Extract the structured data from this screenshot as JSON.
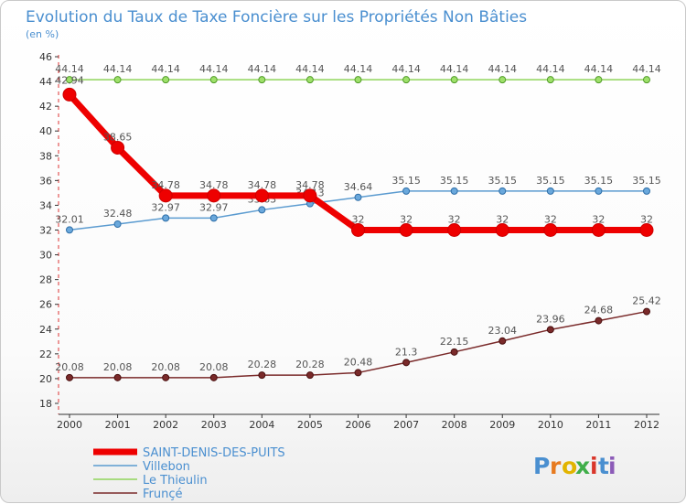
{
  "chart_data": {
    "type": "line",
    "title": "Evolution du Taux de Taxe Foncière sur les Propriétés Non Bâties",
    "subtitle": "(en %)",
    "xlabel": "",
    "ylabel": "",
    "ylim": [
      18,
      46
    ],
    "yticks": [
      18,
      20,
      22,
      24,
      26,
      28,
      30,
      32,
      34,
      36,
      38,
      40,
      42,
      44,
      46
    ],
    "x": [
      "2000",
      "2001",
      "2002",
      "2003",
      "2004",
      "2005",
      "2006",
      "2007",
      "2008",
      "2009",
      "2010",
      "2011",
      "2012"
    ],
    "grid": false,
    "legend_position": "bottom-left",
    "series": [
      {
        "name": "SAINT-DENIS-DES-PUITS",
        "color": "#ee0000",
        "values": [
          42.94,
          38.65,
          34.78,
          34.78,
          34.78,
          34.78,
          32,
          32,
          32,
          32,
          32,
          32,
          32
        ],
        "labels": [
          "42.94",
          "38.65",
          "34.78",
          "34.78",
          "34.78",
          "34.78",
          "32",
          "32",
          "32",
          "32",
          "32",
          "32",
          "32"
        ]
      },
      {
        "name": "Villebon",
        "color": "#5b9bd0",
        "values": [
          32.01,
          32.48,
          32.97,
          32.97,
          33.63,
          34.13,
          34.64,
          35.15,
          35.15,
          35.15,
          35.15,
          35.15,
          35.15
        ],
        "labels": [
          "32.01",
          "32.48",
          "32.97",
          "32.97",
          "33.63",
          "34.13",
          "34.64",
          "35.15",
          "35.15",
          "35.15",
          "35.15",
          "35.15",
          "35.15"
        ]
      },
      {
        "name": "Le Thieulin",
        "color": "#8fd45a",
        "values": [
          44.14,
          44.14,
          44.14,
          44.14,
          44.14,
          44.14,
          44.14,
          44.14,
          44.14,
          44.14,
          44.14,
          44.14,
          44.14
        ],
        "labels": [
          "44.14",
          "44.14",
          "44.14",
          "44.14",
          "44.14",
          "44.14",
          "44.14",
          "44.14",
          "44.14",
          "44.14",
          "44.14",
          "44.14",
          "44.14"
        ]
      },
      {
        "name": "Frunçé",
        "color": "#7a2a2a",
        "values": [
          20.08,
          20.08,
          20.08,
          20.08,
          20.28,
          20.28,
          20.48,
          21.3,
          22.15,
          23.04,
          23.96,
          24.68,
          25.42
        ],
        "labels": [
          "20.08",
          "20.08",
          "20.08",
          "20.08",
          "20.28",
          "20.28",
          "20.48",
          "21.3",
          "22.15",
          "23.04",
          "23.96",
          "24.68",
          "25.42"
        ]
      }
    ]
  },
  "brand": {
    "logo_letters": [
      "P",
      "r",
      "o",
      "x",
      "i",
      "t",
      "i"
    ],
    "logo_colors": [
      "#4a8fd0",
      "#e77a1f",
      "#e2b400",
      "#3fae49",
      "#d9362b",
      "#4a8fd0",
      "#8c5bb8"
    ]
  }
}
